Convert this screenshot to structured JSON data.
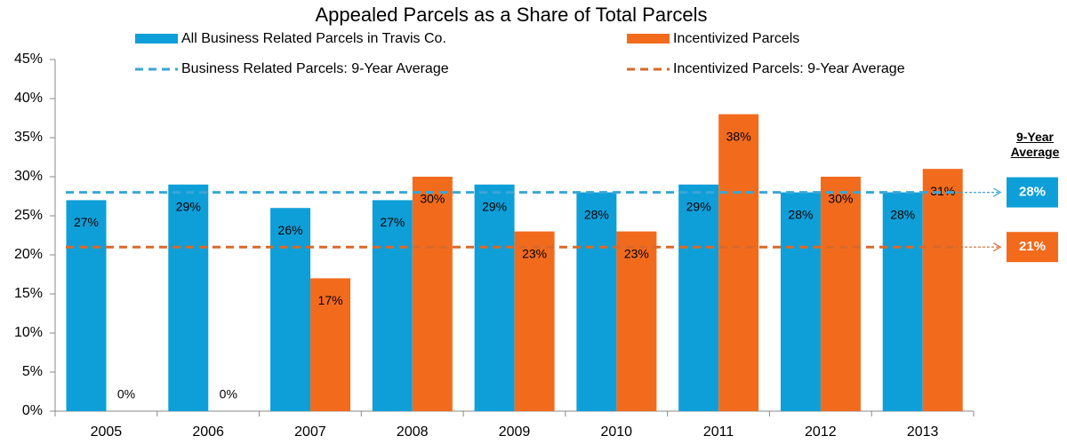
{
  "chart_data": {
    "type": "bar",
    "title": "Appealed Parcels as a Share of Total Parcels",
    "categories": [
      "2005",
      "2006",
      "2007",
      "2008",
      "2009",
      "2010",
      "2011",
      "2012",
      "2013"
    ],
    "series": [
      {
        "name": "All Business Related Parcels in Travis Co.",
        "color": "#0f9fd8",
        "values": [
          27,
          29,
          26,
          27,
          29,
          28,
          29,
          28,
          28
        ],
        "value_labels": [
          "27%",
          "29%",
          "26%",
          "27%",
          "29%",
          "28%",
          "29%",
          "28%",
          "28%"
        ]
      },
      {
        "name": "Incentivized Parcels",
        "color": "#f26b1d",
        "values": [
          0,
          0,
          17,
          30,
          23,
          23,
          38,
          30,
          31
        ],
        "value_labels": [
          "0%",
          "0%",
          "17%",
          "30%",
          "23%",
          "23%",
          "38%",
          "30%",
          "31%"
        ]
      }
    ],
    "reference_lines": [
      {
        "name": "Business Related Parcels: 9-Year Average",
        "color": "#3aa6d6",
        "value": 28,
        "label": "28%"
      },
      {
        "name": "Incentivized Parcels: 9-Year Average",
        "color": "#d8692a",
        "value": 21,
        "label": "21%"
      }
    ],
    "reference_title": "9-Year Average",
    "ylim": [
      0,
      45
    ],
    "yticks": [
      {
        "value": 0,
        "label": "0%"
      },
      {
        "value": 5,
        "label": "5%"
      },
      {
        "value": 10,
        "label": "10%"
      },
      {
        "value": 15,
        "label": "15%"
      },
      {
        "value": 20,
        "label": "20%"
      },
      {
        "value": 25,
        "label": "25%"
      },
      {
        "value": 30,
        "label": "30%"
      },
      {
        "value": 35,
        "label": "35%"
      },
      {
        "value": 40,
        "label": "40%"
      },
      {
        "value": 45,
        "label": "45%"
      }
    ],
    "grid": false
  }
}
